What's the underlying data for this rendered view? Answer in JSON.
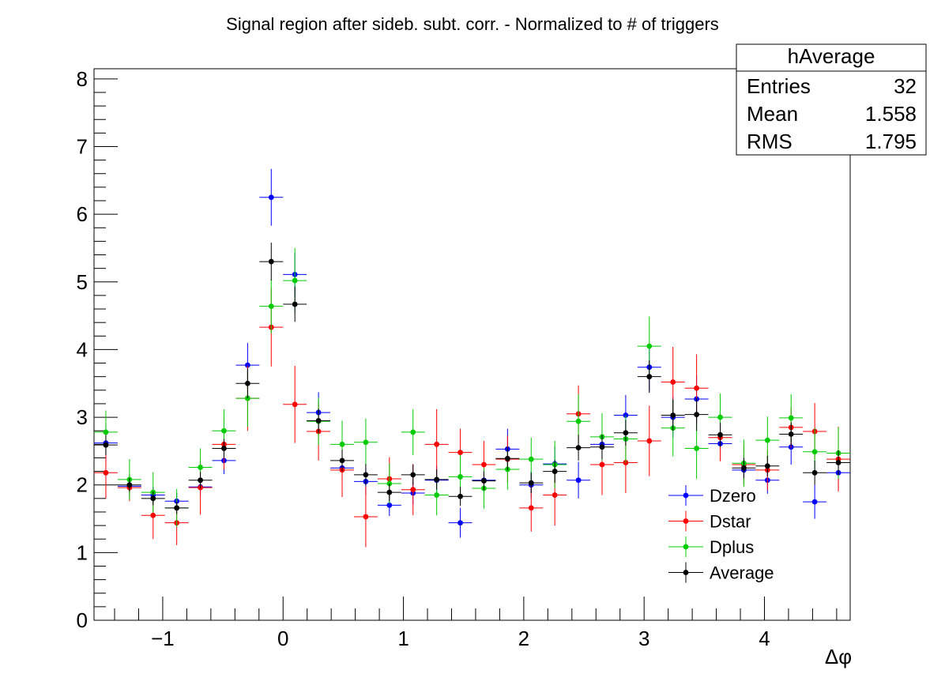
{
  "chart_data": {
    "type": "scatter",
    "title": "Signal region after sideb. subt. corr. - Normalized to # of triggers",
    "xlabel": "Δφ",
    "ylabel": "",
    "xlim": [
      -1.5708,
      4.7124
    ],
    "ylim": [
      0,
      8.15
    ],
    "x_ticks": [
      -1,
      0,
      1,
      2,
      3,
      4
    ],
    "x_tick_labels": [
      "−1",
      "0",
      "1",
      "2",
      "3",
      "4"
    ],
    "y_ticks": [
      0,
      1,
      2,
      3,
      4,
      5,
      6,
      7,
      8
    ],
    "y_tick_labels": [
      "0",
      "1",
      "2",
      "3",
      "4",
      "5",
      "6",
      "7",
      "8"
    ],
    "grid": false,
    "legend_position": "bottom-right",
    "bin_width": 0.19635,
    "x": [
      -1.4726,
      -1.2763,
      -1.0799,
      -0.8836,
      -0.6872,
      -0.4909,
      -0.2945,
      -0.0982,
      0.0982,
      0.2945,
      0.4909,
      0.6872,
      0.8836,
      1.0799,
      1.2763,
      1.4726,
      1.669,
      1.8653,
      2.0617,
      2.258,
      2.4544,
      2.6507,
      2.8471,
      3.0434,
      3.2398,
      3.4361,
      3.6325,
      3.8288,
      4.0252,
      4.2215,
      4.4179,
      4.6142
    ],
    "series": [
      {
        "name": "Dzero",
        "color": "#0000ff",
        "values": [
          2.62,
          1.98,
          1.85,
          1.76,
          1.97,
          2.36,
          3.77,
          6.25,
          5.11,
          3.07,
          2.25,
          2.05,
          1.7,
          1.88,
          2.07,
          1.44,
          2.07,
          2.53,
          2.0,
          2.31,
          2.07,
          2.6,
          3.03,
          3.74,
          3.0,
          3.27,
          2.61,
          2.22,
          2.07,
          2.56,
          1.75,
          2.18
        ],
        "errors": [
          0.28,
          0.13,
          0.12,
          0.12,
          0.14,
          0.2,
          0.33,
          0.42,
          0.32,
          0.3,
          0.2,
          0.2,
          0.16,
          0.17,
          0.21,
          0.22,
          0.17,
          0.3,
          0.2,
          0.26,
          0.27,
          0.22,
          0.3,
          0.35,
          0.3,
          0.35,
          0.25,
          0.22,
          0.2,
          0.26,
          0.25,
          0.25
        ]
      },
      {
        "name": "Dstar",
        "color": "#ff0000",
        "values": [
          2.18,
          1.96,
          1.55,
          1.44,
          1.96,
          2.6,
          3.28,
          4.33,
          3.19,
          2.79,
          2.22,
          1.53,
          2.09,
          1.93,
          2.6,
          2.48,
          2.3,
          2.38,
          1.66,
          1.85,
          3.05,
          2.3,
          2.33,
          2.65,
          3.52,
          3.43,
          2.7,
          2.3,
          2.22,
          2.85,
          2.79,
          2.38
        ],
        "errors": [
          0.38,
          0.2,
          0.35,
          0.33,
          0.4,
          0.37,
          0.48,
          0.58,
          0.57,
          0.43,
          0.4,
          0.45,
          0.32,
          0.38,
          0.52,
          0.35,
          0.35,
          0.35,
          0.35,
          0.45,
          0.42,
          0.45,
          0.45,
          0.52,
          0.52,
          0.5,
          0.35,
          0.3,
          0.3,
          0.3,
          0.42,
          0.48
        ]
      },
      {
        "name": "Dplus",
        "color": "#00cc00",
        "values": [
          2.78,
          2.08,
          1.89,
          1.66,
          2.26,
          2.8,
          3.28,
          4.64,
          5.02,
          2.94,
          2.6,
          2.63,
          2.02,
          2.78,
          1.85,
          2.12,
          1.95,
          2.23,
          2.38,
          2.3,
          2.94,
          2.71,
          2.68,
          4.05,
          2.84,
          2.54,
          3.0,
          2.32,
          2.66,
          2.99,
          2.49,
          2.47
        ],
        "errors": [
          0.32,
          0.3,
          0.3,
          0.28,
          0.28,
          0.32,
          0.42,
          0.4,
          0.48,
          0.35,
          0.35,
          0.35,
          0.3,
          0.34,
          0.3,
          0.32,
          0.3,
          0.3,
          0.32,
          0.35,
          0.4,
          0.35,
          0.35,
          0.44,
          0.42,
          0.45,
          0.35,
          0.35,
          0.35,
          0.35,
          0.35,
          0.38
        ]
      },
      {
        "name": "Average",
        "color": "#000000",
        "values": [
          2.59,
          2.0,
          1.8,
          1.66,
          2.07,
          2.54,
          3.5,
          5.3,
          4.67,
          2.95,
          2.36,
          2.15,
          1.89,
          2.15,
          2.08,
          1.83,
          2.06,
          2.39,
          2.03,
          2.2,
          2.55,
          2.56,
          2.77,
          3.6,
          3.03,
          3.04,
          2.74,
          2.25,
          2.28,
          2.75,
          2.18,
          2.33
        ],
        "errors": [
          0.15,
          0.1,
          0.1,
          0.09,
          0.12,
          0.14,
          0.22,
          0.28,
          0.26,
          0.18,
          0.16,
          0.16,
          0.13,
          0.15,
          0.15,
          0.14,
          0.14,
          0.17,
          0.15,
          0.17,
          0.19,
          0.18,
          0.19,
          0.24,
          0.23,
          0.24,
          0.18,
          0.15,
          0.15,
          0.17,
          0.18,
          0.18
        ]
      }
    ],
    "stats_box": {
      "title": "hAverage",
      "rows": [
        {
          "label": "Entries",
          "value": "32"
        },
        {
          "label": "Mean",
          "value": "1.558"
        },
        {
          "label": "RMS",
          "value": "1.795"
        }
      ]
    }
  }
}
